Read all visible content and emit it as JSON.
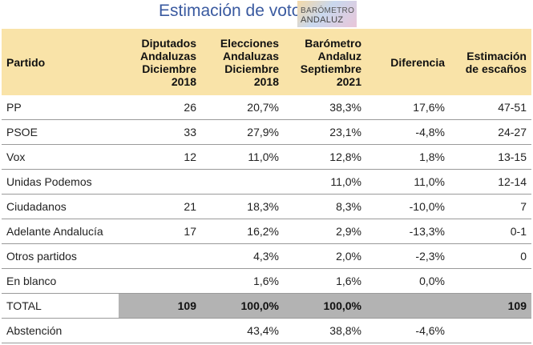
{
  "header": {
    "title": "Estimación de voto",
    "logo_line1": "BARÓMETRO",
    "logo_line2": "ANDALUZ"
  },
  "table": {
    "columns": [
      "Partido",
      "Diputados Andaluzas Diciembre 2018",
      "Elecciones Andaluzas Diciembre 2018",
      "Barómetro Andaluz Septiembre 2021",
      "Diferencia",
      "Estimación de escaños"
    ],
    "rows": [
      [
        "PP",
        "26",
        "20,7%",
        "38,3%",
        "17,6%",
        "47-51"
      ],
      [
        "PSOE",
        "33",
        "27,9%",
        "23,1%",
        "-4,8%",
        "24-27"
      ],
      [
        "Vox",
        "12",
        "11,0%",
        "12,8%",
        "1,8%",
        "13-15"
      ],
      [
        "Unidas Podemos",
        "",
        "",
        "11,0%",
        "11,0%",
        "12-14"
      ],
      [
        "Ciudadanos",
        "21",
        "18,3%",
        "8,3%",
        "-10,0%",
        "7"
      ],
      [
        "Adelante Andalucía",
        "17",
        "16,2%",
        "2,9%",
        "-13,3%",
        "0-1"
      ],
      [
        "Otros partidos",
        "",
        "4,3%",
        "2,0%",
        "-2,3%",
        "0"
      ],
      [
        "En blanco",
        "",
        "1,6%",
        "1,6%",
        "0,0%",
        ""
      ],
      [
        "TOTAL",
        "109",
        "100,0%",
        "100,0%",
        "",
        "109"
      ],
      [
        "Abstención",
        "",
        "43,4%",
        "38,8%",
        "-4,6%",
        ""
      ]
    ]
  },
  "colors": {
    "header_bg": "#f9e3a8",
    "total_bg": "#b3b3b3",
    "title": "#3a5aa0"
  }
}
